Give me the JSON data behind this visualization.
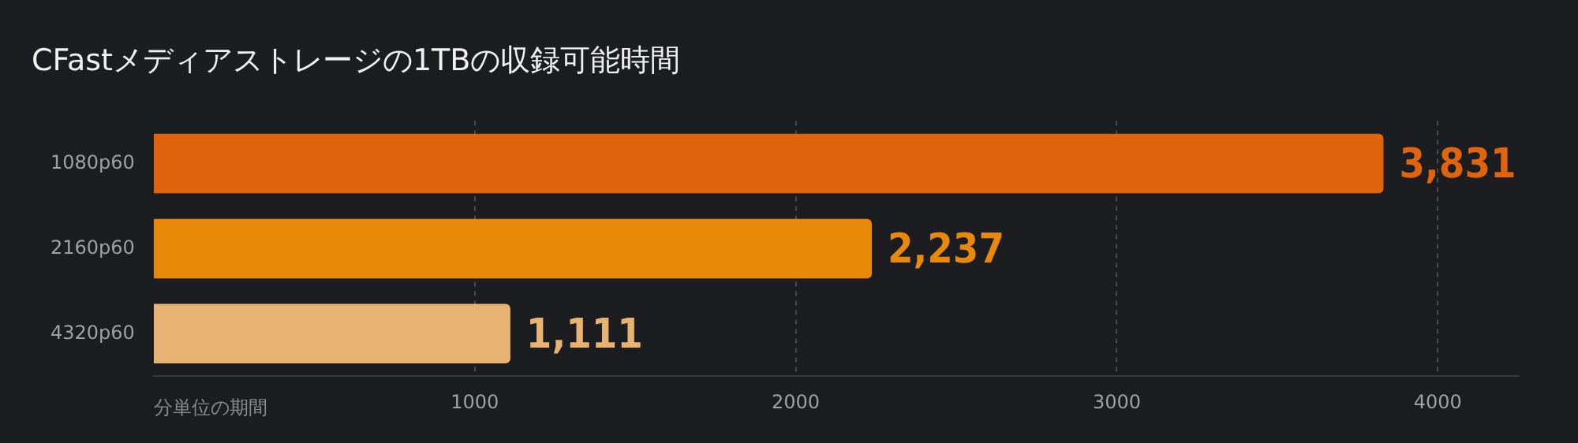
{
  "chart_data": {
    "type": "bar",
    "orientation": "horizontal",
    "title": "CFastメディアストレージの1TBの収録可能時間",
    "xlabel": "分単位の期間",
    "categories": [
      "1080p60",
      "2160p60",
      "4320p60"
    ],
    "values": [
      3831,
      2237,
      1111
    ],
    "colors": [
      "#e0640e",
      "#e8890a",
      "#e8b270"
    ],
    "value_labels": [
      "3,831",
      "2,237",
      "1,111"
    ],
    "xlim": [
      0,
      4250
    ],
    "xticks": [
      1000,
      2000,
      3000,
      4000
    ],
    "grid": "x",
    "legend": false
  }
}
